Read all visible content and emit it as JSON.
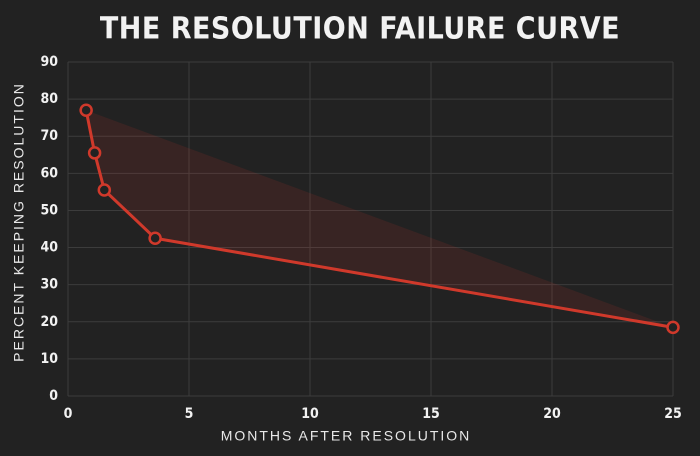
{
  "chart_data": {
    "type": "line",
    "title": "THE RESOLUTION FAILURE CURVE",
    "x_label": "MONTHS AFTER RESOLUTION",
    "y_label": "PERCENT KEEPING RESOLUTION",
    "x": [
      0.75,
      1.1,
      1.5,
      3.6,
      25
    ],
    "series": [
      {
        "name": "Percent keeping resolution",
        "color": "#d0392b",
        "values": [
          77,
          65.5,
          55.5,
          42.5,
          18.5
        ]
      }
    ],
    "xlim": [
      0,
      25
    ],
    "xticks": [
      0,
      5,
      10,
      15,
      20,
      25
    ],
    "ylim": [
      0,
      90
    ],
    "yticks": [
      0,
      10,
      20,
      30,
      40,
      50,
      60,
      70,
      80,
      90
    ],
    "grid": true
  }
}
